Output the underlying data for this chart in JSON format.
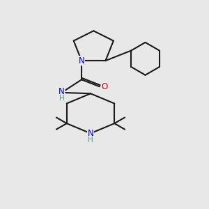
{
  "background_color": "#e8e8e8",
  "bond_color": "#1a1a1a",
  "N_color": "#0000cc",
  "O_color": "#cc0000",
  "NH_color": "#4a9a8a",
  "line_width": 1.5,
  "font_size_atom": 8.5,
  "font_size_H": 7.5,
  "xlim": [
    0,
    10
  ],
  "ylim": [
    0,
    10.5
  ]
}
